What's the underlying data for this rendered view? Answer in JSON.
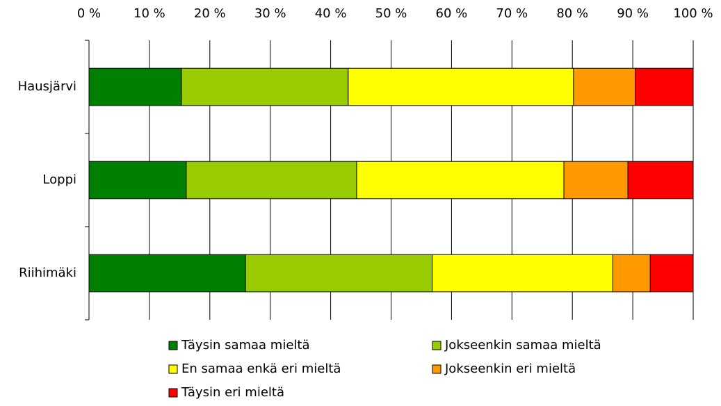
{
  "chart_data": {
    "type": "stacked_barh",
    "categories": [
      "Hausjärvi",
      "Loppi",
      "Riihimäki"
    ],
    "series": [
      {
        "name": "Täysin samaa mieltä",
        "color": "#008000",
        "values": [
          15.3,
          16.1,
          25.9
        ]
      },
      {
        "name": "Jokseenkin samaa mieltä",
        "color": "#99cc00",
        "values": [
          27.6,
          28.2,
          30.9
        ]
      },
      {
        "name": "En samaa enkä eri mieltä",
        "color": "#ffff00",
        "values": [
          37.3,
          34.3,
          29.9
        ]
      },
      {
        "name": "Jokseenkin eri mieltä",
        "color": "#ff9900",
        "values": [
          10.2,
          10.6,
          6.2
        ]
      },
      {
        "name": "Täysin eri mieltä",
        "color": "#ff0000",
        "values": [
          9.6,
          10.8,
          7.1
        ]
      }
    ],
    "xlim": [
      0,
      100
    ],
    "xticks": [
      {
        "value": 0,
        "label": "0 %"
      },
      {
        "value": 10,
        "label": "10 %"
      },
      {
        "value": 20,
        "label": "20 %"
      },
      {
        "value": 30,
        "label": "30 %"
      },
      {
        "value": 40,
        "label": "40 %"
      },
      {
        "value": 50,
        "label": "50 %"
      },
      {
        "value": 60,
        "label": "60 %"
      },
      {
        "value": 70,
        "label": "70 %"
      },
      {
        "value": 80,
        "label": "80 %"
      },
      {
        "value": 90,
        "label": "90 %"
      },
      {
        "value": 100,
        "label": "100 %"
      }
    ],
    "grid": true,
    "legend": "bottom"
  }
}
